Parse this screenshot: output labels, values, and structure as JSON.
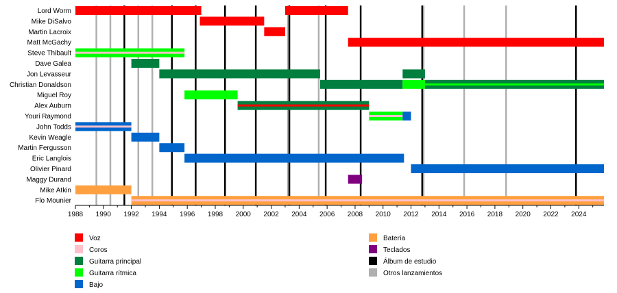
{
  "chart_data": {
    "type": "timeline",
    "title": "",
    "xlabel": "",
    "ylabel": "",
    "xlim": [
      1988,
      2025.8
    ],
    "x_ticks": [
      "1988",
      "1990",
      "1992",
      "1994",
      "1996",
      "1998",
      "2000",
      "2002",
      "2004",
      "2006",
      "2008",
      "2010",
      "2012",
      "2014",
      "2016",
      "2018",
      "2020",
      "2022",
      "2024"
    ],
    "grid": false,
    "legend_position": "bottom",
    "colors": {
      "voz": "#ff0000",
      "coros": "#ffc0cb",
      "guitarra_principal": "#007f3f",
      "guitarra_ritmica": "#00ff00",
      "bajo": "#0066cc",
      "bateria": "#ffa040",
      "teclados": "#7f007f",
      "album": "#000000",
      "otros": "#b0b0b0"
    },
    "members": [
      "Lord Worm",
      "Mike DiSalvo",
      "Martin Lacroix",
      "Matt McGachy",
      "Steve Thibault",
      "Dave Galea",
      "Jon Levasseur",
      "Christian Donaldson",
      "Miguel Roy",
      "Alex Auburn",
      "Youri Raymond",
      "John Todds",
      "Kevin Weagle",
      "Martin Fergusson",
      "Eric Langlois",
      "Olivier Pinard",
      "Maggy Durand",
      "Mike Atkin",
      "Flo Mounier"
    ],
    "bars": [
      {
        "member": 0,
        "role": "voz",
        "start": 1988.0,
        "end": 1997.0
      },
      {
        "member": 0,
        "role": "voz",
        "start": 2003.0,
        "end": 2007.5
      },
      {
        "member": 1,
        "role": "voz",
        "start": 1996.9,
        "end": 2001.5
      },
      {
        "member": 2,
        "role": "voz",
        "start": 2001.5,
        "end": 2003.0
      },
      {
        "member": 3,
        "role": "voz",
        "start": 2007.5,
        "end": 2025.8
      },
      {
        "member": 4,
        "role": "guitarra_ritmica",
        "start": 1988.0,
        "end": 1995.8,
        "secondary": "coros"
      },
      {
        "member": 5,
        "role": "guitarra_principal",
        "start": 1992.0,
        "end": 1994.0
      },
      {
        "member": 6,
        "role": "guitarra_principal",
        "start": 1994.0,
        "end": 2005.5
      },
      {
        "member": 6,
        "role": "guitarra_principal",
        "start": 2011.4,
        "end": 2013.0
      },
      {
        "member": 7,
        "role": "guitarra_principal",
        "start": 2005.5,
        "end": 2011.4
      },
      {
        "member": 7,
        "role": "guitarra_ritmica",
        "start": 2011.4,
        "end": 2013.0
      },
      {
        "member": 7,
        "role": "guitarra_principal",
        "start": 2013.0,
        "end": 2025.8,
        "secondary": "guitarra_ritmica"
      },
      {
        "member": 8,
        "role": "guitarra_ritmica",
        "start": 1995.8,
        "end": 1999.6
      },
      {
        "member": 9,
        "role": "guitarra_principal",
        "start": 1999.6,
        "end": 2009.0,
        "secondary": "voz"
      },
      {
        "member": 10,
        "role": "guitarra_ritmica",
        "start": 2009.0,
        "end": 2011.4,
        "secondary": "coros"
      },
      {
        "member": 10,
        "role": "bajo",
        "start": 2011.4,
        "end": 2012.0
      },
      {
        "member": 11,
        "role": "bajo",
        "start": 1988.0,
        "end": 1992.0,
        "secondary": "coros"
      },
      {
        "member": 12,
        "role": "bajo",
        "start": 1992.0,
        "end": 1994.0
      },
      {
        "member": 13,
        "role": "bajo",
        "start": 1994.0,
        "end": 1995.8
      },
      {
        "member": 14,
        "role": "bajo",
        "start": 1995.8,
        "end": 2011.5
      },
      {
        "member": 15,
        "role": "bajo",
        "start": 2012.0,
        "end": 2025.8
      },
      {
        "member": 16,
        "role": "teclados",
        "start": 2007.5,
        "end": 2008.5
      },
      {
        "member": 17,
        "role": "bateria",
        "start": 1988.0,
        "end": 1992.0
      },
      {
        "member": 18,
        "role": "bateria",
        "start": 1992.0,
        "end": 2025.8,
        "secondary": "coros"
      }
    ],
    "studio_albums": [
      1991.5,
      1994.9,
      1996.6,
      1998.7,
      2000.9,
      2003.3,
      2005.9,
      2008.4,
      2012.8,
      2023.8
    ],
    "other_releases": [
      1989.5,
      1990.5,
      1992.5,
      1993.5,
      2003.2,
      2005.4,
      2012.9,
      2015.8,
      2018.8
    ],
    "legend": [
      {
        "key": "voz",
        "label": "Voz"
      },
      {
        "key": "coros",
        "label": "Coros"
      },
      {
        "key": "guitarra_principal",
        "label": "Guitarra principal"
      },
      {
        "key": "guitarra_ritmica",
        "label": "Guitarra rítmica"
      },
      {
        "key": "bajo",
        "label": "Bajo"
      },
      {
        "key": "bateria",
        "label": "Batería"
      },
      {
        "key": "teclados",
        "label": "Teclados"
      },
      {
        "key": "album",
        "label": "Álbum de estudio"
      },
      {
        "key": "otros",
        "label": "Otros lanzamientos"
      }
    ]
  }
}
